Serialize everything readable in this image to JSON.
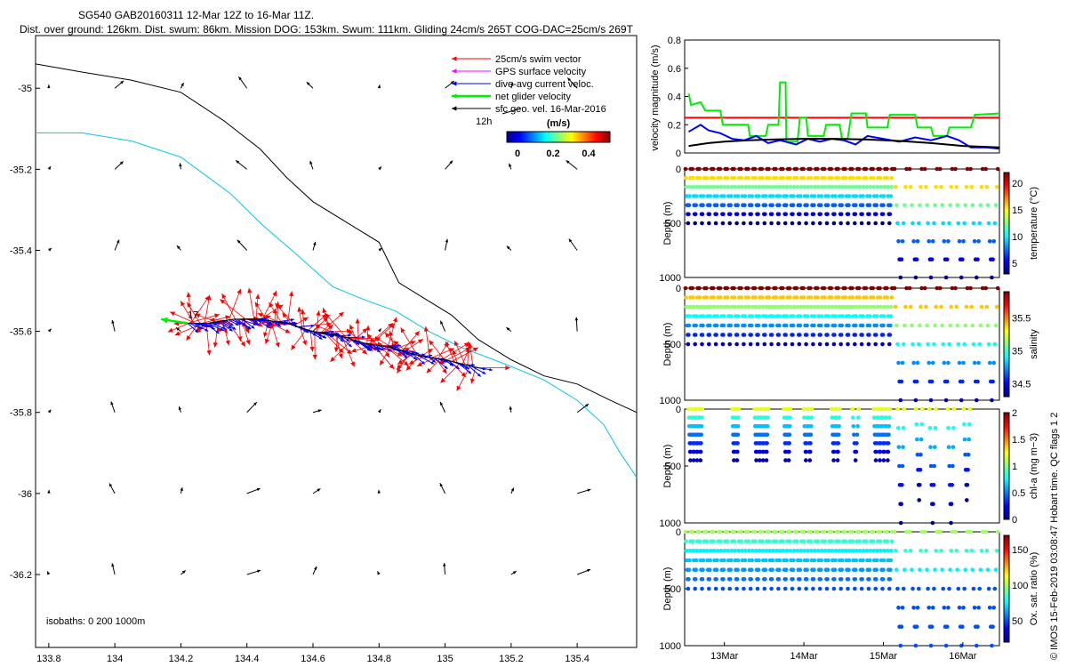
{
  "title": {
    "line1": "SG540 GAB20160311 12-Mar 12Z to 16-Mar 11Z.",
    "line2": "Dist. over ground: 126km. Dist. swum: 86km. Mission DOG: 153km. Swum: 111km. Gliding 24cm/s 265T COG-DAC=25cm/s 269T"
  },
  "credit": "© IMOS 15-Feb-2019 03:08:47 Hobart time. QC flags 1  2",
  "chart_data": [
    {
      "type": "map",
      "name": "track",
      "xticks": [
        "133.8",
        "134",
        "134.2",
        "134.4",
        "134.6",
        "134.8",
        "135",
        "135.2",
        "135.4"
      ],
      "yticks": [
        "-35",
        "-35.2",
        "-35.4",
        "-35.6",
        "-35.8",
        "-36",
        "-36.2"
      ],
      "xlim": [
        133.76,
        135.58
      ],
      "ylim": [
        -36.38,
        -34.87
      ],
      "legend": [
        {
          "label": "25cm/s swim vector",
          "color": "#ff0000"
        },
        {
          "label": "GPS surface velocity",
          "color": "#ff00ff"
        },
        {
          "label": "dive-avg current veloc.",
          "color": "#0000ff"
        },
        {
          "label": "net glider velocity",
          "color": "#00ee00"
        },
        {
          "label": "sfc geo. vel. 16-Mar-2016",
          "color": "#000000"
        }
      ],
      "scale_label": "12h",
      "colorbar_label": "(m/s)",
      "colorbar_ticks": [
        "0",
        "0.2",
        "0.4"
      ],
      "start_label": "17",
      "isobath_label": "isobaths: 0   200  1000m",
      "isobath_200": [
        [
          133.76,
          -34.94
        ],
        [
          133.9,
          -34.96
        ],
        [
          134.05,
          -34.98
        ],
        [
          134.2,
          -35.01
        ],
        [
          134.33,
          -35.08
        ],
        [
          134.44,
          -35.15
        ],
        [
          134.52,
          -35.22
        ],
        [
          134.6,
          -35.28
        ],
        [
          134.7,
          -35.33
        ],
        [
          134.8,
          -35.38
        ],
        [
          134.86,
          -35.48
        ],
        [
          134.94,
          -35.52
        ],
        [
          135.02,
          -35.56
        ],
        [
          135.1,
          -35.62
        ],
        [
          135.2,
          -35.67
        ],
        [
          135.3,
          -35.71
        ],
        [
          135.4,
          -35.73
        ],
        [
          135.5,
          -35.77
        ],
        [
          135.58,
          -35.8
        ]
      ],
      "isobath_1000": [
        [
          133.76,
          -35.11
        ],
        [
          133.9,
          -35.11
        ],
        [
          134.05,
          -35.13
        ],
        [
          134.2,
          -35.17
        ],
        [
          134.35,
          -35.26
        ],
        [
          134.45,
          -35.34
        ],
        [
          134.55,
          -35.41
        ],
        [
          134.66,
          -35.49
        ],
        [
          134.75,
          -35.52
        ],
        [
          134.85,
          -35.55
        ],
        [
          134.95,
          -35.6
        ],
        [
          135.05,
          -35.64
        ],
        [
          135.18,
          -35.68
        ],
        [
          135.3,
          -35.72
        ],
        [
          135.4,
          -35.77
        ],
        [
          135.48,
          -35.83
        ],
        [
          135.53,
          -35.9
        ],
        [
          135.58,
          -35.96
        ]
      ],
      "track": [
        [
          135.1,
          -35.69
        ],
        [
          135.0,
          -35.67
        ],
        [
          134.92,
          -35.66
        ],
        [
          134.84,
          -35.64
        ],
        [
          134.76,
          -35.63
        ],
        [
          134.68,
          -35.61
        ],
        [
          134.6,
          -35.6
        ],
        [
          134.52,
          -35.58
        ],
        [
          134.44,
          -35.57
        ],
        [
          134.36,
          -35.57
        ],
        [
          134.28,
          -35.58
        ],
        [
          134.22,
          -35.58
        ]
      ],
      "net_velocity": {
        "lon": 134.22,
        "lat": -35.58,
        "dlon": -0.08,
        "dlat": 0.01
      },
      "geo_grid_lons": [
        133.8,
        134.0,
        134.2,
        134.4,
        134.6,
        134.8,
        135.0,
        135.2,
        135.4
      ],
      "geo_grid_lats": [
        -35.0,
        -35.2,
        -35.4,
        -35.6,
        -35.8,
        -36.0,
        -36.2
      ]
    },
    {
      "type": "line",
      "name": "velocity magnitude",
      "ylabel": "velocity magnitude (m/s)",
      "ylim": [
        0,
        0.8
      ],
      "yticks": [
        "0",
        "0.2",
        "0.4",
        "0.6",
        "0.8"
      ],
      "xlim": [
        12.5,
        16.46
      ],
      "reference_line": 0.25,
      "series": [
        {
          "color": "#00ee00",
          "points": [
            [
              12.55,
              0.42
            ],
            [
              12.58,
              0.34
            ],
            [
              12.7,
              0.36
            ],
            [
              12.76,
              0.3
            ],
            [
              12.95,
              0.3
            ],
            [
              12.98,
              0.2
            ],
            [
              13.3,
              0.2
            ],
            [
              13.32,
              0.12
            ],
            [
              13.52,
              0.12
            ],
            [
              13.55,
              0.2
            ],
            [
              13.68,
              0.2
            ],
            [
              13.7,
              0.5
            ],
            [
              13.77,
              0.5
            ],
            [
              13.78,
              0.08
            ],
            [
              13.92,
              0.08
            ],
            [
              13.95,
              0.25
            ],
            [
              14.03,
              0.25
            ],
            [
              14.05,
              0.12
            ],
            [
              14.25,
              0.12
            ],
            [
              14.28,
              0.2
            ],
            [
              14.45,
              0.2
            ],
            [
              14.48,
              0.1
            ],
            [
              14.55,
              0.1
            ],
            [
              14.6,
              0.28
            ],
            [
              14.78,
              0.28
            ],
            [
              14.8,
              0.18
            ],
            [
              15.05,
              0.18
            ],
            [
              15.08,
              0.27
            ],
            [
              15.4,
              0.27
            ],
            [
              15.43,
              0.18
            ],
            [
              15.6,
              0.18
            ],
            [
              15.63,
              0.12
            ],
            [
              15.8,
              0.12
            ],
            [
              15.83,
              0.18
            ],
            [
              16.1,
              0.18
            ],
            [
              16.15,
              0.27
            ],
            [
              16.46,
              0.28
            ]
          ]
        },
        {
          "color": "#0000ff",
          "points": [
            [
              12.55,
              0.15
            ],
            [
              12.7,
              0.2
            ],
            [
              12.8,
              0.16
            ],
            [
              12.95,
              0.14
            ],
            [
              13.1,
              0.1
            ],
            [
              13.25,
              0.09
            ],
            [
              13.4,
              0.12
            ],
            [
              13.55,
              0.07
            ],
            [
              13.7,
              0.09
            ],
            [
              13.9,
              0.06
            ],
            [
              14.05,
              0.1
            ],
            [
              14.2,
              0.08
            ],
            [
              14.35,
              0.1
            ],
            [
              14.5,
              0.09
            ],
            [
              14.65,
              0.06
            ],
            [
              14.8,
              0.12
            ],
            [
              15.0,
              0.1
            ],
            [
              15.2,
              0.08
            ],
            [
              15.4,
              0.11
            ],
            [
              15.6,
              0.09
            ],
            [
              15.8,
              0.12
            ],
            [
              15.95,
              0.09
            ],
            [
              16.1,
              0.04
            ],
            [
              16.3,
              0.04
            ],
            [
              16.46,
              0.03
            ]
          ]
        },
        {
          "color": "#000000",
          "points": [
            [
              12.55,
              0.05
            ],
            [
              12.8,
              0.07
            ],
            [
              13.0,
              0.08
            ],
            [
              13.3,
              0.09
            ],
            [
              13.6,
              0.095
            ],
            [
              14.0,
              0.1
            ],
            [
              14.4,
              0.1
            ],
            [
              14.8,
              0.095
            ],
            [
              15.2,
              0.085
            ],
            [
              15.6,
              0.07
            ],
            [
              16.0,
              0.05
            ],
            [
              16.46,
              0.04
            ]
          ]
        }
      ]
    },
    {
      "type": "scatter",
      "name": "temperature",
      "ylabel": "Depth (m)",
      "colorbar_label": "temperature (°C)",
      "colorbar_ticks": [
        "5",
        "10",
        "15",
        "20"
      ],
      "crange": [
        3,
        22
      ],
      "yticks": [
        "0",
        "500",
        "1000"
      ],
      "ylim": [
        0,
        1000
      ],
      "profiles": {
        "shallow_days": [
          12.5,
          15.12
        ],
        "shallow_count": 30,
        "shallow_depth": 500,
        "deep_days": [
          15.12,
          16.46
        ],
        "deep_count": 7,
        "deep_depth": 1000,
        "surface_value": 22,
        "bottom_value": 3
      }
    },
    {
      "type": "scatter",
      "name": "salinity",
      "ylabel": "Depth (m)",
      "colorbar_label": "salinity",
      "colorbar_ticks": [
        "34.5",
        "35",
        "35.5"
      ],
      "crange": [
        34.3,
        35.9
      ],
      "yticks": [
        "0",
        "500",
        "1000"
      ],
      "ylim": [
        0,
        1000
      ],
      "profiles": {
        "shallow_days": [
          12.5,
          15.12
        ],
        "shallow_count": 30,
        "shallow_depth": 500,
        "deep_days": [
          15.12,
          16.46
        ],
        "deep_count": 7,
        "deep_depth": 1000,
        "surface_value": 35.9,
        "bottom_value": 34.4
      }
    },
    {
      "type": "scatter",
      "name": "chl-a",
      "ylabel": "Depth (m)",
      "colorbar_label": "chl-a (mg m−3)",
      "colorbar_ticks": [
        "0",
        "0.5",
        "1",
        "1.5",
        "2"
      ],
      "crange": [
        0,
        2
      ],
      "yticks": [
        "0",
        "500",
        "1000"
      ],
      "ylim": [
        0,
        1000
      ],
      "profiles": {
        "groups": [
          [
            12.55,
            12.72,
            4,
            450
          ],
          [
            13.1,
            13.18,
            2,
            450
          ],
          [
            13.38,
            13.55,
            4,
            450
          ],
          [
            13.75,
            13.83,
            2,
            450
          ],
          [
            14.0,
            14.1,
            2,
            450
          ],
          [
            14.35,
            14.45,
            2,
            450
          ],
          [
            14.65,
            14.7,
            1,
            450
          ],
          [
            14.88,
            15.08,
            4,
            450
          ],
          [
            15.22,
            15.22,
            1,
            1000
          ],
          [
            15.45,
            15.45,
            1,
            800
          ],
          [
            15.62,
            15.62,
            1,
            1000
          ],
          [
            15.85,
            15.85,
            1,
            1000
          ],
          [
            16.05,
            16.05,
            1,
            800
          ]
        ],
        "surface_value": 1.2,
        "bottom_value": 0.02
      }
    },
    {
      "type": "scatter",
      "name": "oxygen saturation",
      "ylabel": "Depth (m)",
      "colorbar_label": "Ox. sat. ratio (%)",
      "colorbar_ticks": [
        "50",
        "100",
        "150"
      ],
      "crange": [
        20,
        170
      ],
      "yticks": [
        "0",
        "500",
        "1000"
      ],
      "ylim": [
        0,
        1000
      ],
      "xticks": [
        "13Mar",
        "14Mar",
        "15Mar",
        "16Mar"
      ],
      "xtick_days": [
        13,
        14,
        15,
        16
      ],
      "profiles": {
        "shallow_days": [
          12.5,
          15.12
        ],
        "shallow_count": 30,
        "shallow_depth": 500,
        "deep_days": [
          15.12,
          16.46
        ],
        "deep_count": 7,
        "deep_depth": 1000,
        "surface_value": 100,
        "bottom_value": 50
      }
    }
  ]
}
